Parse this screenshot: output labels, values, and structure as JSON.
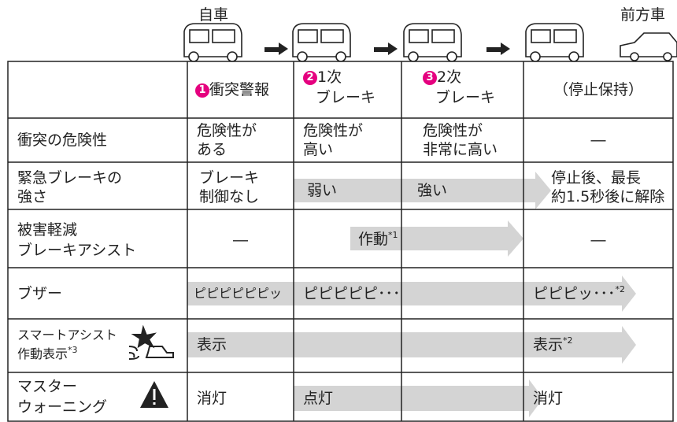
{
  "header": {
    "own_car": "自車",
    "front_car": "前方車"
  },
  "table": {
    "columns": [
      {
        "number": "1",
        "lines": [
          "衝突警報"
        ]
      },
      {
        "number": "2",
        "lines": [
          "1次",
          "ブレーキ"
        ]
      },
      {
        "number": "3",
        "lines": [
          "2次",
          "ブレーキ"
        ]
      },
      {
        "lines": [
          "（停止保持）"
        ]
      }
    ],
    "rows": [
      {
        "label": [
          "衝突の危険性"
        ],
        "cells": [
          {
            "lines": [
              "危険性が",
              "ある"
            ]
          },
          {
            "lines": [
              "危険性が",
              "高い"
            ]
          },
          {
            "lines": [
              "危険性が",
              "非常に高い"
            ]
          },
          {
            "lines": [
              "―"
            ]
          }
        ]
      },
      {
        "label": [
          "緊急ブレーキの",
          "強さ"
        ],
        "cells": [
          {
            "lines": [
              "ブレーキ",
              "制御なし"
            ]
          },
          {
            "lines": [
              "弱い"
            ]
          },
          {
            "lines": [
              "強い"
            ]
          },
          {
            "lines": [
              "停止後、最長",
              "約1.5秒後に解除"
            ]
          }
        ]
      },
      {
        "label": [
          "被害軽減",
          "ブレーキアシスト"
        ],
        "cells": [
          {
            "lines": [
              "―"
            ]
          },
          {
            "lines": [
              "作動"
            ],
            "note": "*1"
          },
          {
            "lines": []
          },
          {
            "lines": [
              "―"
            ]
          }
        ]
      },
      {
        "label": [
          "ブザー"
        ],
        "cells": [
          {
            "lines": [
              "ピピピピピピッ"
            ]
          },
          {
            "lines": [
              "ピピピピピ･･･"
            ]
          },
          {
            "lines": []
          },
          {
            "lines": [
              "ピピピッ･･･"
            ],
            "note": "*2"
          }
        ]
      },
      {
        "label": [
          "スマートアシスト",
          "作動表示"
        ],
        "note": "*3",
        "cells": [
          {
            "lines": [
              "表示"
            ]
          },
          {
            "lines": []
          },
          {
            "lines": []
          },
          {
            "lines": [
              "表示"
            ],
            "note": "*2"
          }
        ]
      },
      {
        "label": [
          "マスター",
          "ウォーニング"
        ],
        "cells": [
          {
            "lines": [
              "消灯"
            ]
          },
          {
            "lines": [
              "点灯"
            ]
          },
          {
            "lines": []
          },
          {
            "lines": [
              "消灯"
            ]
          }
        ]
      }
    ]
  }
}
